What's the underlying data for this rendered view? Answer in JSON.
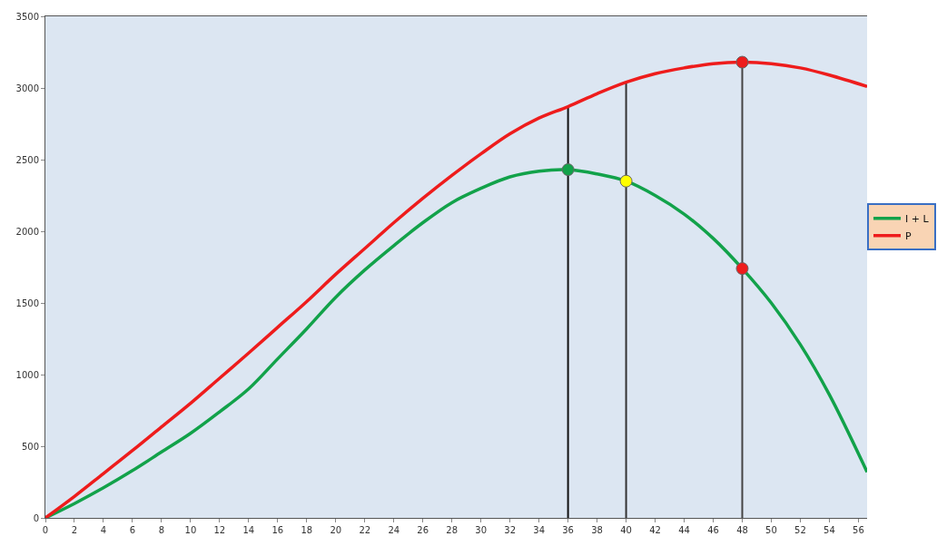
{
  "chart_data": {
    "type": "line",
    "xlim": [
      0,
      56.6
    ],
    "ylim": [
      0,
      3500
    ],
    "xticks": [
      0,
      2,
      4,
      6,
      8,
      10,
      12,
      14,
      16,
      18,
      20,
      22,
      24,
      26,
      28,
      30,
      32,
      34,
      36,
      38,
      40,
      42,
      44,
      46,
      48,
      50,
      52,
      54,
      56
    ],
    "yticks": [
      0,
      500,
      1000,
      1500,
      2000,
      2500,
      3000,
      3500
    ],
    "grid": false,
    "legend": "right",
    "marker": "none",
    "line_style": "solid",
    "x": [
      0,
      2,
      4,
      6,
      8,
      10,
      12,
      14,
      16,
      18,
      20,
      22,
      24,
      26,
      28,
      30,
      32,
      34,
      36,
      38,
      40,
      42,
      44,
      46,
      48,
      50,
      52,
      54,
      56.6
    ],
    "series": [
      {
        "name": "I + L",
        "color": "#12a24a",
        "values": [
          0,
          100,
          210,
          330,
          460,
          590,
          740,
          900,
          1110,
          1320,
          1540,
          1730,
          1900,
          2060,
          2200,
          2300,
          2380,
          2420,
          2430,
          2400,
          2350,
          2250,
          2120,
          1950,
          1740,
          1500,
          1210,
          860,
          320
        ]
      },
      {
        "name": "P",
        "color": "#ee1c1c",
        "values": [
          0,
          150,
          310,
          470,
          635,
          800,
          975,
          1150,
          1330,
          1510,
          1700,
          1880,
          2060,
          2230,
          2390,
          2540,
          2680,
          2790,
          2870,
          2960,
          3040,
          3100,
          3140,
          3170,
          3180,
          3170,
          3140,
          3090,
          3010
        ]
      },
      {
        "type": "scatter",
        "marker": "circle",
        "x": [
          36,
          40,
          48,
          48
        ],
        "values": [
          2430,
          2350,
          1740,
          3180
        ],
        "colors": [
          "#12a24a",
          "#ffff00",
          "#ee1c1c",
          "#ee1c1c"
        ]
      }
    ],
    "ref_lines": [
      {
        "axis": "x",
        "value": 36,
        "color": "#111111"
      },
      {
        "axis": "x",
        "value": 40,
        "color": "#333333"
      },
      {
        "axis": "x",
        "value": 48,
        "color": "#444444"
      }
    ]
  }
}
